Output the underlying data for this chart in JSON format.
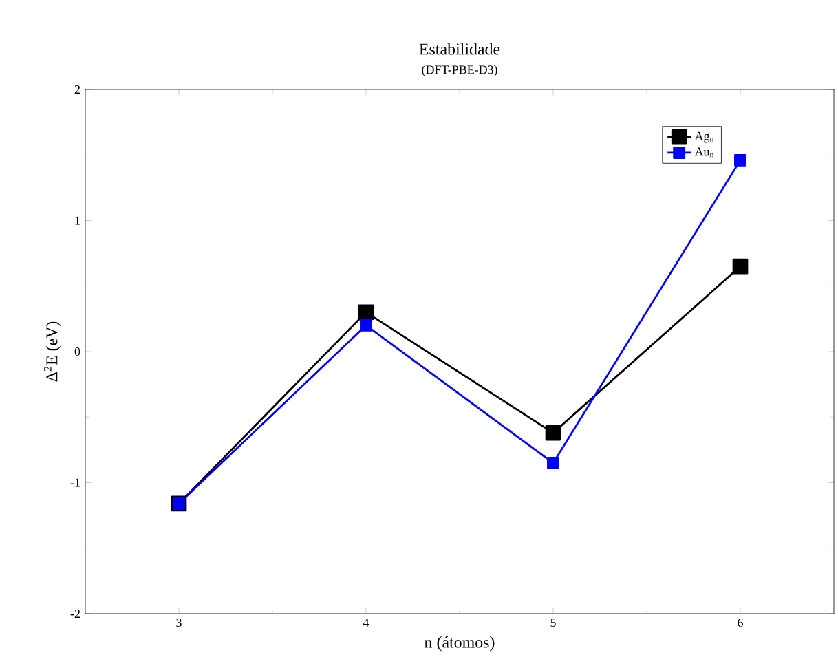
{
  "chart_data": {
    "type": "line",
    "title": "Estabilidade",
    "subtitle": "(DFT-PBE-D3)",
    "xlabel": "n (átomos)",
    "ylabel": "Δ$^{2}$E (eV)",
    "x": [
      3,
      4,
      5,
      6
    ],
    "series": [
      {
        "name": "Ag$_{n}$",
        "color": "#000000",
        "values": [
          -1.16,
          0.3,
          -0.62,
          0.65
        ]
      },
      {
        "name": "Au$_{n}$",
        "color": "#0000ff",
        "values": [
          -1.16,
          0.2,
          -0.85,
          1.46
        ]
      }
    ],
    "xlim": [
      2.5,
      6.5
    ],
    "ylim": [
      -2,
      2
    ],
    "xticks": [
      3,
      4,
      5,
      6
    ],
    "yticks": [
      -2,
      -1,
      0,
      1,
      2
    ],
    "legend": "top right",
    "marker": "square",
    "line_style": "solid",
    "grid": false
  }
}
